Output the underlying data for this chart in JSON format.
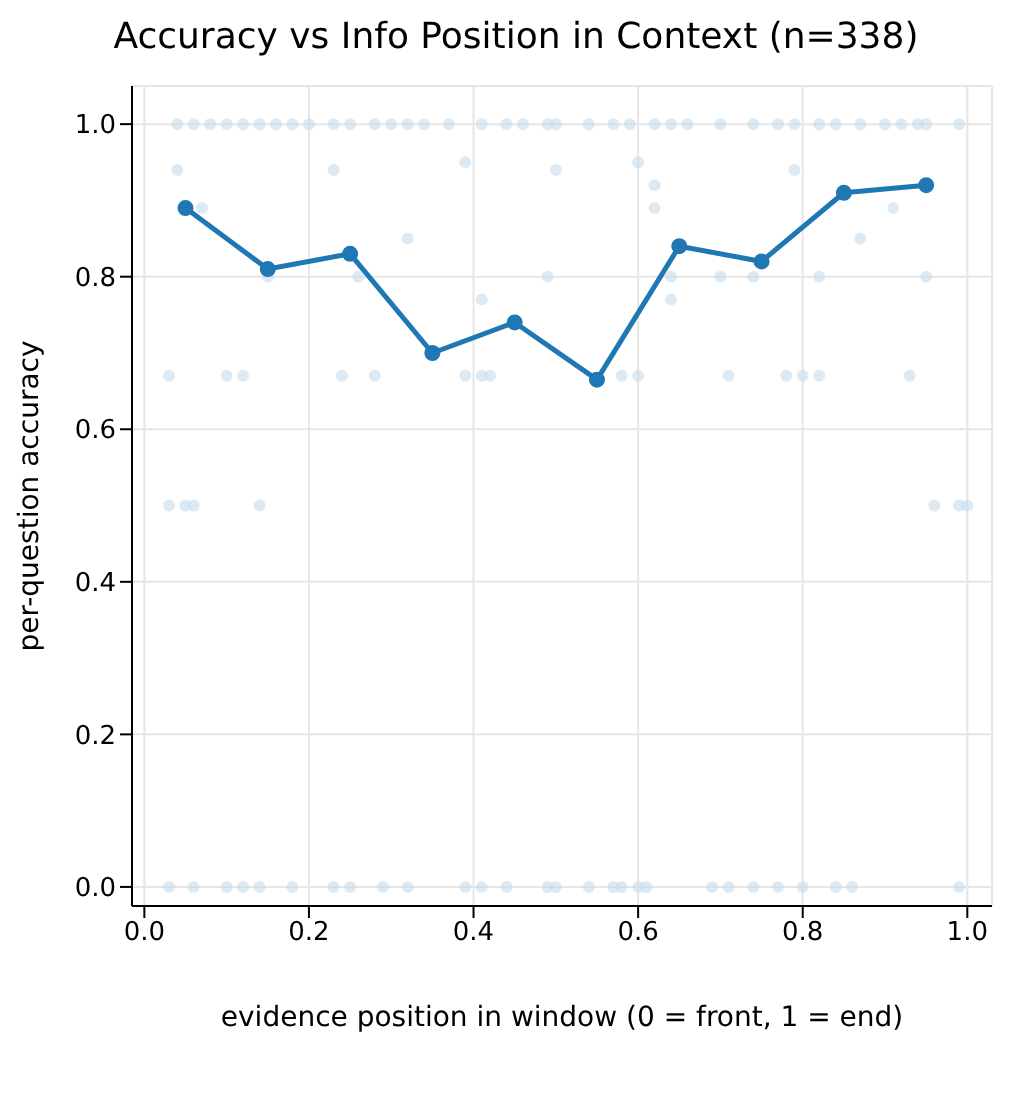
{
  "chart_data": {
    "type": "line",
    "title": "Accuracy vs Info Position in Context (n=338)",
    "xlabel": "evidence position in window (0 = front, 1 = end)",
    "ylabel": "per-question accuracy",
    "xlim": [
      -0.015,
      1.03
    ],
    "ylim": [
      -0.025,
      1.05
    ],
    "xticks": [
      {
        "value": 0,
        "label": "0.0"
      },
      {
        "value": 0.2,
        "label": "0.2"
      },
      {
        "value": 0.4,
        "label": "0.4"
      },
      {
        "value": 0.6,
        "label": "0.6"
      },
      {
        "value": 0.8,
        "label": "0.8"
      },
      {
        "value": 1,
        "label": "1.0"
      }
    ],
    "yticks": [
      {
        "value": 0,
        "label": "0.0"
      },
      {
        "value": 0.2,
        "label": "0.2"
      },
      {
        "value": 0.4,
        "label": "0.4"
      },
      {
        "value": 0.6,
        "label": "0.6"
      },
      {
        "value": 0.8,
        "label": "0.8"
      },
      {
        "value": 1,
        "label": "1.0"
      }
    ],
    "grid": true,
    "legend": false,
    "series": [
      {
        "type": "scatter",
        "color": "#c7dcec",
        "marker": "circle",
        "x": [
          0.04,
          0.06,
          0.08,
          0.1,
          0.12,
          0.14,
          0.16,
          0.18,
          0.2,
          0.23,
          0.25,
          0.28,
          0.3,
          0.32,
          0.34,
          0.37,
          0.41,
          0.44,
          0.46,
          0.49,
          0.5,
          0.54,
          0.57,
          0.59,
          0.62,
          0.64,
          0.66,
          0.7,
          0.74,
          0.77,
          0.79,
          0.82,
          0.84,
          0.87,
          0.9,
          0.92,
          0.94,
          0.95,
          0.99,
          0.04,
          0.23,
          0.39,
          0.5,
          0.6,
          0.62,
          0.62,
          0.79,
          0.91,
          0.07,
          0.32,
          0.87,
          0.15,
          0.26,
          0.49,
          0.64,
          0.7,
          0.74,
          0.82,
          0.95,
          0.41,
          0.64,
          0.03,
          0.1,
          0.12,
          0.24,
          0.28,
          0.39,
          0.41,
          0.42,
          0.58,
          0.6,
          0.71,
          0.78,
          0.8,
          0.82,
          0.93,
          0.03,
          0.05,
          0.06,
          0.14,
          0.96,
          0.99,
          1.0,
          0.03,
          0.06,
          0.1,
          0.12,
          0.14,
          0.18,
          0.23,
          0.25,
          0.29,
          0.32,
          0.39,
          0.41,
          0.44,
          0.49,
          0.5,
          0.54,
          0.57,
          0.58,
          0.6,
          0.61,
          0.69,
          0.71,
          0.74,
          0.77,
          0.8,
          0.84,
          0.86,
          0.99
        ],
        "values": [
          1,
          1,
          1,
          1,
          1,
          1,
          1,
          1,
          1,
          1,
          1,
          1,
          1,
          1,
          1,
          1,
          1,
          1,
          1,
          1,
          1,
          1,
          1,
          1,
          1,
          1,
          1,
          1,
          1,
          1,
          1,
          1,
          1,
          1,
          1,
          1,
          1,
          1,
          1,
          0.94,
          0.94,
          0.95,
          0.94,
          0.95,
          0.92,
          0.89,
          0.94,
          0.89,
          0.89,
          0.85,
          0.85,
          0.8,
          0.8,
          0.8,
          0.8,
          0.8,
          0.8,
          0.8,
          0.8,
          0.77,
          0.77,
          0.67,
          0.67,
          0.67,
          0.67,
          0.67,
          0.67,
          0.67,
          0.67,
          0.67,
          0.67,
          0.67,
          0.67,
          0.67,
          0.67,
          0.67,
          0.5,
          0.5,
          0.5,
          0.5,
          0.5,
          0.5,
          0.5,
          0,
          0,
          0,
          0,
          0,
          0,
          0,
          0,
          0,
          0,
          0,
          0,
          0,
          0,
          0,
          0,
          0,
          0,
          0,
          0,
          0,
          0,
          0,
          0,
          0,
          0,
          0,
          0
        ]
      },
      {
        "color": "#1f77b4",
        "marker": "circle",
        "line_style": "solid",
        "x": [
          0.05,
          0.15,
          0.25,
          0.35,
          0.45,
          0.55,
          0.65,
          0.75,
          0.85,
          0.95
        ],
        "values": [
          0.89,
          0.81,
          0.83,
          0.7,
          0.74,
          0.665,
          0.84,
          0.82,
          0.91,
          0.92
        ]
      }
    ]
  }
}
